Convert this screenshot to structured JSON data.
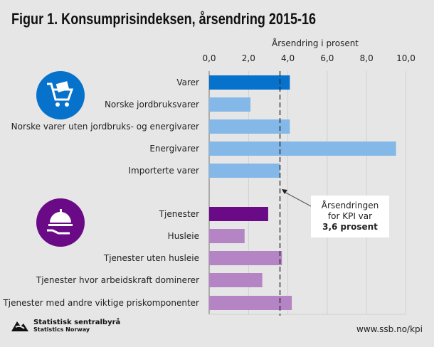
{
  "chart_data": {
    "type": "bar",
    "orientation": "horizontal",
    "title": "Figur 1. Konsumprisindeksen, årsendring 2015-16",
    "xlabel": "Årsendring i prosent",
    "xlim": [
      0,
      10
    ],
    "ticks": [
      "0,0",
      "2,0",
      "4,0",
      "6,0",
      "8,0",
      "10,0"
    ],
    "tick_values": [
      0,
      2,
      4,
      6,
      8,
      10
    ],
    "grid": true,
    "categories": [
      "Varer",
      "Norske jordbruksvarer",
      "Norske varer uten jordbruks- og energivarer",
      "Energivarer",
      "Importerte varer",
      "Tjenester",
      "Husleie",
      "Tjenester uten husleie",
      "Tjenester hvor arbeidskraft dominerer",
      "Tjenester med andre viktige priskomponenter"
    ],
    "values": [
      4.1,
      2.1,
      4.1,
      9.5,
      3.6,
      3.0,
      1.8,
      3.7,
      2.7,
      4.2
    ],
    "colors": [
      "#0672cb",
      "#83b8e8",
      "#83b8e8",
      "#83b8e8",
      "#83b8e8",
      "#6b0a87",
      "#b584c5",
      "#b584c5",
      "#b584c5",
      "#b584c5"
    ],
    "reference_line": {
      "value": 3.6,
      "style": "dashed"
    },
    "annotation": {
      "line1": "Årsendringen",
      "line2": "for KPI var",
      "line3": "3,6 prosent"
    }
  },
  "icons": {
    "goods": "shopping-cart-icon",
    "services": "serving-cloche-icon",
    "goods_color": "#0672cb",
    "services_color": "#6b0a87"
  },
  "footer": {
    "logo_line1": "Statistisk sentralbyrå",
    "logo_line2": "Statistics Norway",
    "url": "www.ssb.no/kpi"
  }
}
